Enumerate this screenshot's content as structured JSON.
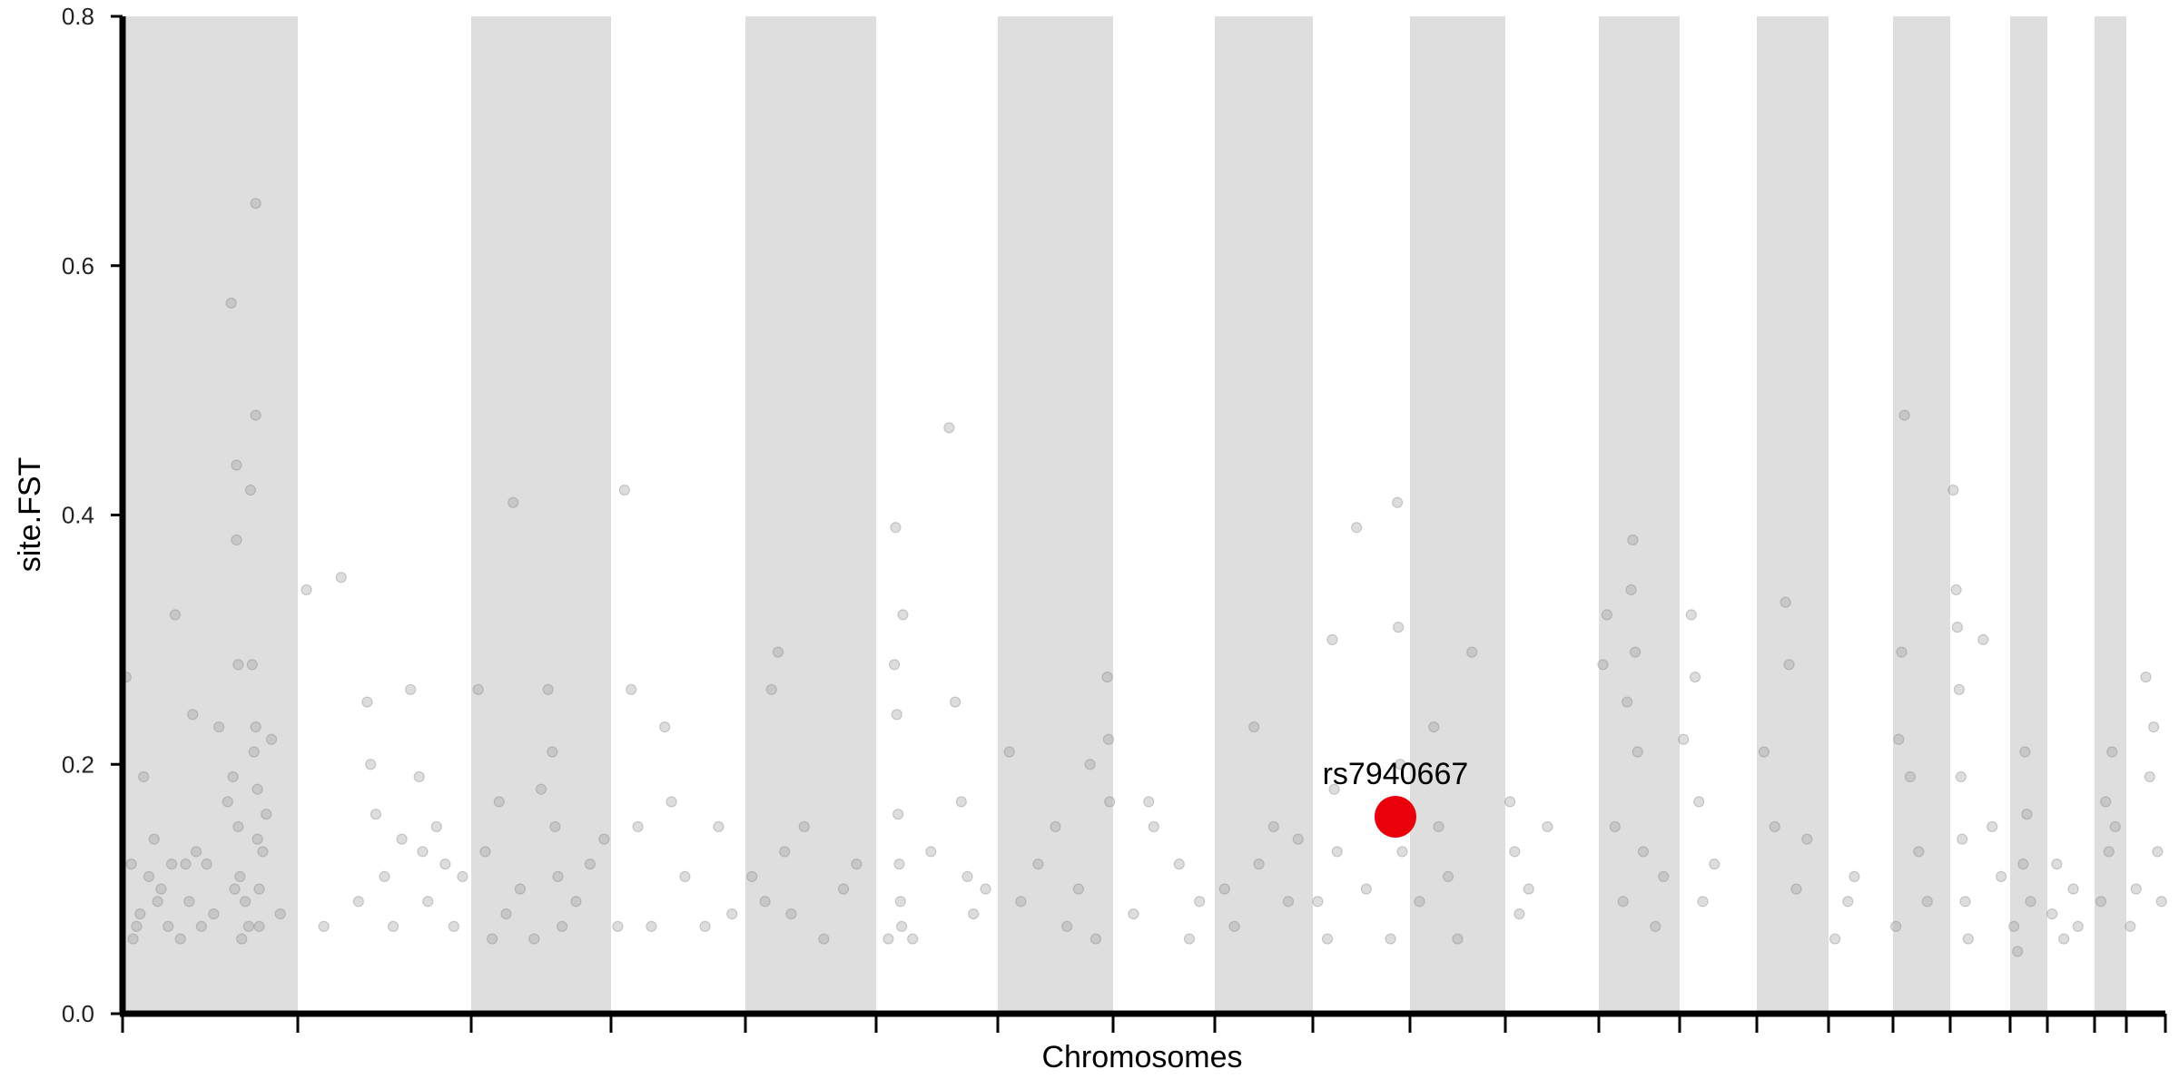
{
  "chart_data": {
    "type": "scatter",
    "title": "",
    "xlabel": "Chromosomes",
    "ylabel": "site.FST",
    "ylim": [
      0,
      0.8
    ],
    "yticks": [
      "0.0",
      "0.2",
      "0.4",
      "0.6",
      "0.8"
    ],
    "grid": false,
    "legend": "none",
    "chromosome_bands": [
      {
        "start": 0,
        "end": 1
      },
      {
        "start": 2,
        "end": 3
      },
      {
        "start": 4,
        "end": 5
      },
      {
        "start": 6,
        "end": 7
      },
      {
        "start": 8,
        "end": 9
      },
      {
        "start": 10,
        "end": 11
      },
      {
        "start": 12,
        "end": 13
      },
      {
        "start": 14,
        "end": 15
      },
      {
        "start": 16,
        "end": 17
      },
      {
        "start": 18,
        "end": 19
      },
      {
        "start": 20,
        "end": 21
      }
    ],
    "chromosome_boundaries": [
      0,
      1,
      2,
      3,
      4,
      5,
      6,
      7,
      8,
      9,
      10,
      11,
      12,
      13,
      14,
      15,
      16,
      17,
      18,
      19,
      20,
      21,
      22
    ],
    "points": [
      [
        0.02,
        0.27
      ],
      [
        0.05,
        0.12
      ],
      [
        0.06,
        0.06
      ],
      [
        0.08,
        0.07
      ],
      [
        0.1,
        0.08
      ],
      [
        0.12,
        0.19
      ],
      [
        0.15,
        0.11
      ],
      [
        0.18,
        0.14
      ],
      [
        0.2,
        0.09
      ],
      [
        0.22,
        0.1
      ],
      [
        0.26,
        0.07
      ],
      [
        0.28,
        0.12
      ],
      [
        0.3,
        0.32
      ],
      [
        0.33,
        0.06
      ],
      [
        0.36,
        0.12
      ],
      [
        0.38,
        0.09
      ],
      [
        0.4,
        0.24
      ],
      [
        0.42,
        0.13
      ],
      [
        0.45,
        0.07
      ],
      [
        0.48,
        0.12
      ],
      [
        0.52,
        0.08
      ],
      [
        0.55,
        0.23
      ],
      [
        0.6,
        0.17
      ],
      [
        0.62,
        0.57
      ],
      [
        0.63,
        0.19
      ],
      [
        0.64,
        0.1
      ],
      [
        0.65,
        0.44
      ],
      [
        0.65,
        0.38
      ],
      [
        0.66,
        0.28
      ],
      [
        0.66,
        0.15
      ],
      [
        0.67,
        0.11
      ],
      [
        0.68,
        0.06
      ],
      [
        0.7,
        0.09
      ],
      [
        0.72,
        0.07
      ],
      [
        0.73,
        0.42
      ],
      [
        0.74,
        0.28
      ],
      [
        0.75,
        0.21
      ],
      [
        0.76,
        0.65
      ],
      [
        0.76,
        0.48
      ],
      [
        0.76,
        0.23
      ],
      [
        0.77,
        0.18
      ],
      [
        0.77,
        0.14
      ],
      [
        0.78,
        0.1
      ],
      [
        0.78,
        0.07
      ],
      [
        0.8,
        0.13
      ],
      [
        0.82,
        0.16
      ],
      [
        0.85,
        0.22
      ],
      [
        0.9,
        0.08
      ],
      [
        1.05,
        0.34
      ],
      [
        1.15,
        0.07
      ],
      [
        1.25,
        0.35
      ],
      [
        1.35,
        0.09
      ],
      [
        1.4,
        0.25
      ],
      [
        1.42,
        0.2
      ],
      [
        1.45,
        0.16
      ],
      [
        1.5,
        0.11
      ],
      [
        1.55,
        0.07
      ],
      [
        1.6,
        0.14
      ],
      [
        1.65,
        0.26
      ],
      [
        1.7,
        0.19
      ],
      [
        1.72,
        0.13
      ],
      [
        1.75,
        0.09
      ],
      [
        1.8,
        0.15
      ],
      [
        1.85,
        0.12
      ],
      [
        1.9,
        0.07
      ],
      [
        1.95,
        0.11
      ],
      [
        2.05,
        0.26
      ],
      [
        2.1,
        0.13
      ],
      [
        2.15,
        0.06
      ],
      [
        2.2,
        0.17
      ],
      [
        2.25,
        0.08
      ],
      [
        2.3,
        0.41
      ],
      [
        2.35,
        0.1
      ],
      [
        2.45,
        0.06
      ],
      [
        2.5,
        0.18
      ],
      [
        2.55,
        0.26
      ],
      [
        2.58,
        0.21
      ],
      [
        2.6,
        0.15
      ],
      [
        2.62,
        0.11
      ],
      [
        2.65,
        0.07
      ],
      [
        2.75,
        0.09
      ],
      [
        2.85,
        0.12
      ],
      [
        2.95,
        0.14
      ],
      [
        3.05,
        0.07
      ],
      [
        3.1,
        0.42
      ],
      [
        3.15,
        0.26
      ],
      [
        3.2,
        0.15
      ],
      [
        3.3,
        0.07
      ],
      [
        3.4,
        0.23
      ],
      [
        3.45,
        0.17
      ],
      [
        3.55,
        0.11
      ],
      [
        3.7,
        0.07
      ],
      [
        3.8,
        0.15
      ],
      [
        3.9,
        0.08
      ],
      [
        4.05,
        0.11
      ],
      [
        4.15,
        0.09
      ],
      [
        4.2,
        0.26
      ],
      [
        4.25,
        0.29
      ],
      [
        4.3,
        0.13
      ],
      [
        4.35,
        0.08
      ],
      [
        4.45,
        0.15
      ],
      [
        4.6,
        0.06
      ],
      [
        4.75,
        0.1
      ],
      [
        4.85,
        0.12
      ],
      [
        5.1,
        0.06
      ],
      [
        5.15,
        0.28
      ],
      [
        5.16,
        0.39
      ],
      [
        5.17,
        0.24
      ],
      [
        5.18,
        0.16
      ],
      [
        5.19,
        0.12
      ],
      [
        5.2,
        0.09
      ],
      [
        5.21,
        0.07
      ],
      [
        5.22,
        0.32
      ],
      [
        5.3,
        0.06
      ],
      [
        5.45,
        0.13
      ],
      [
        5.6,
        0.47
      ],
      [
        5.65,
        0.25
      ],
      [
        5.7,
        0.17
      ],
      [
        5.75,
        0.11
      ],
      [
        5.8,
        0.08
      ],
      [
        5.9,
        0.1
      ],
      [
        6.1,
        0.21
      ],
      [
        6.2,
        0.09
      ],
      [
        6.35,
        0.12
      ],
      [
        6.5,
        0.15
      ],
      [
        6.6,
        0.07
      ],
      [
        6.7,
        0.1
      ],
      [
        6.8,
        0.2
      ],
      [
        6.85,
        0.06
      ],
      [
        6.95,
        0.27
      ],
      [
        6.96,
        0.22
      ],
      [
        6.97,
        0.17
      ],
      [
        7.2,
        0.08
      ],
      [
        7.35,
        0.17
      ],
      [
        7.4,
        0.15
      ],
      [
        7.65,
        0.12
      ],
      [
        7.75,
        0.06
      ],
      [
        7.85,
        0.09
      ],
      [
        8.1,
        0.1
      ],
      [
        8.2,
        0.07
      ],
      [
        8.4,
        0.23
      ],
      [
        8.45,
        0.12
      ],
      [
        8.6,
        0.15
      ],
      [
        8.75,
        0.09
      ],
      [
        8.85,
        0.14
      ],
      [
        9.05,
        0.09
      ],
      [
        9.15,
        0.06
      ],
      [
        9.2,
        0.3
      ],
      [
        9.22,
        0.18
      ],
      [
        9.25,
        0.13
      ],
      [
        9.45,
        0.39
      ],
      [
        9.55,
        0.1
      ],
      [
        9.8,
        0.06
      ],
      [
        9.87,
        0.41
      ],
      [
        9.88,
        0.31
      ],
      [
        9.9,
        0.2
      ],
      [
        9.92,
        0.13
      ],
      [
        10.1,
        0.09
      ],
      [
        10.25,
        0.23
      ],
      [
        10.3,
        0.15
      ],
      [
        10.4,
        0.11
      ],
      [
        10.5,
        0.06
      ],
      [
        10.65,
        0.29
      ],
      [
        11.05,
        0.17
      ],
      [
        11.1,
        0.13
      ],
      [
        11.15,
        0.08
      ],
      [
        11.25,
        0.1
      ],
      [
        11.45,
        0.15
      ],
      [
        12.05,
        0.28
      ],
      [
        12.1,
        0.32
      ],
      [
        12.2,
        0.15
      ],
      [
        12.3,
        0.09
      ],
      [
        12.35,
        0.25
      ],
      [
        12.4,
        0.34
      ],
      [
        12.42,
        0.38
      ],
      [
        12.45,
        0.29
      ],
      [
        12.48,
        0.21
      ],
      [
        12.55,
        0.13
      ],
      [
        12.7,
        0.07
      ],
      [
        12.8,
        0.11
      ],
      [
        13.05,
        0.22
      ],
      [
        13.15,
        0.32
      ],
      [
        13.2,
        0.27
      ],
      [
        13.25,
        0.17
      ],
      [
        13.3,
        0.09
      ],
      [
        13.45,
        0.12
      ],
      [
        14.1,
        0.21
      ],
      [
        14.25,
        0.15
      ],
      [
        14.4,
        0.33
      ],
      [
        14.45,
        0.28
      ],
      [
        14.55,
        0.1
      ],
      [
        14.7,
        0.14
      ],
      [
        15.1,
        0.06
      ],
      [
        15.3,
        0.09
      ],
      [
        15.4,
        0.11
      ],
      [
        16.05,
        0.07
      ],
      [
        16.1,
        0.22
      ],
      [
        16.15,
        0.29
      ],
      [
        16.2,
        0.48
      ],
      [
        16.3,
        0.19
      ],
      [
        16.45,
        0.13
      ],
      [
        16.6,
        0.09
      ],
      [
        17.05,
        0.42
      ],
      [
        17.1,
        0.34
      ],
      [
        17.12,
        0.31
      ],
      [
        17.15,
        0.26
      ],
      [
        17.18,
        0.19
      ],
      [
        17.2,
        0.14
      ],
      [
        17.25,
        0.09
      ],
      [
        17.3,
        0.06
      ],
      [
        17.55,
        0.3
      ],
      [
        17.7,
        0.15
      ],
      [
        17.85,
        0.11
      ],
      [
        18.1,
        0.07
      ],
      [
        18.2,
        0.05
      ],
      [
        18.35,
        0.12
      ],
      [
        18.4,
        0.21
      ],
      [
        18.45,
        0.16
      ],
      [
        18.55,
        0.09
      ],
      [
        19.1,
        0.08
      ],
      [
        19.2,
        0.12
      ],
      [
        19.35,
        0.06
      ],
      [
        19.55,
        0.1
      ],
      [
        19.65,
        0.07
      ],
      [
        20.2,
        0.09
      ],
      [
        20.35,
        0.17
      ],
      [
        20.45,
        0.13
      ],
      [
        20.55,
        0.21
      ],
      [
        20.65,
        0.15
      ],
      [
        21.1,
        0.07
      ],
      [
        21.25,
        0.1
      ],
      [
        21.5,
        0.27
      ],
      [
        21.6,
        0.19
      ],
      [
        21.7,
        0.23
      ],
      [
        21.8,
        0.13
      ],
      [
        21.9,
        0.09
      ]
    ],
    "highlight": {
      "label": "rs7940667",
      "x": 9.85,
      "y": 0.158,
      "color": "#e8000b"
    }
  },
  "colors": {
    "band": "#dedede",
    "point": "#9e9e9e",
    "axis": "#000000"
  }
}
